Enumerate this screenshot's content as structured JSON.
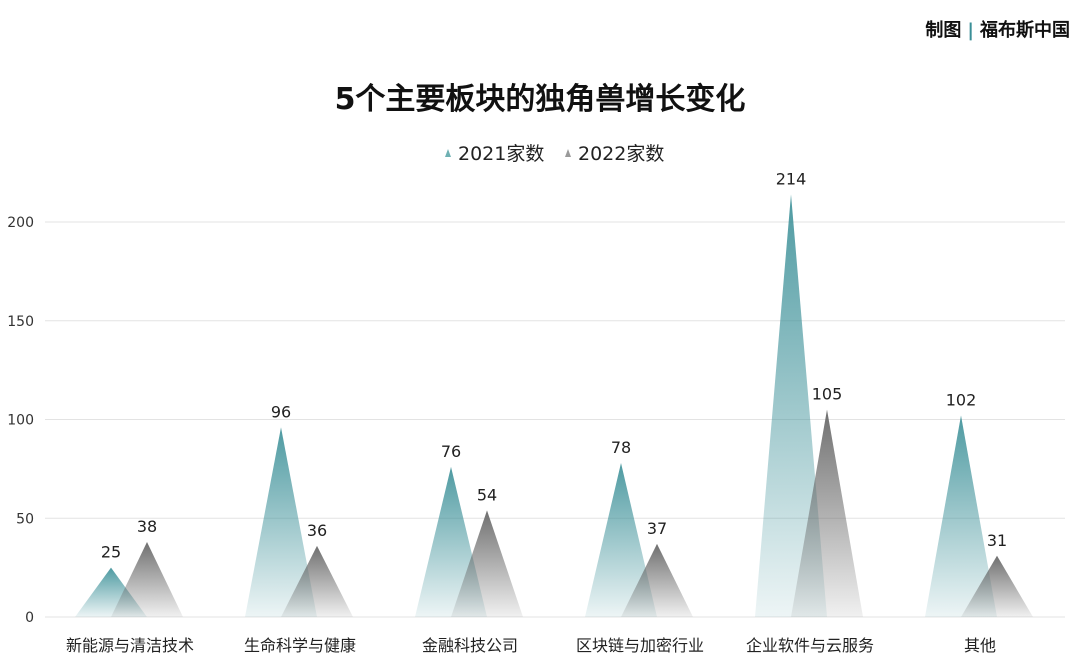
{
  "credit": {
    "label": "制图",
    "source": "福布斯中国"
  },
  "colors": {
    "series_2021": "#3a8f97",
    "series_2022": "#5f5f5f",
    "grid": "#e3e3e3"
  },
  "chart_data": {
    "type": "bar",
    "mark": "triangle",
    "title": "5个主要板块的独角兽增长变化",
    "categories": [
      "新能源与清洁技术",
      "生命科学与健康",
      "金融科技公司",
      "区块链与加密行业",
      "企业软件与云服务",
      "其他"
    ],
    "series": [
      {
        "name": "2021家数",
        "values": [
          25,
          96,
          76,
          78,
          214,
          102
        ]
      },
      {
        "name": "2022家数",
        "values": [
          38,
          36,
          54,
          37,
          105,
          31
        ]
      }
    ],
    "ylim": [
      0,
      220
    ],
    "yticks": [
      0,
      50,
      100,
      150,
      200
    ],
    "grid": true,
    "legend": "top-center",
    "data_labels": true
  }
}
